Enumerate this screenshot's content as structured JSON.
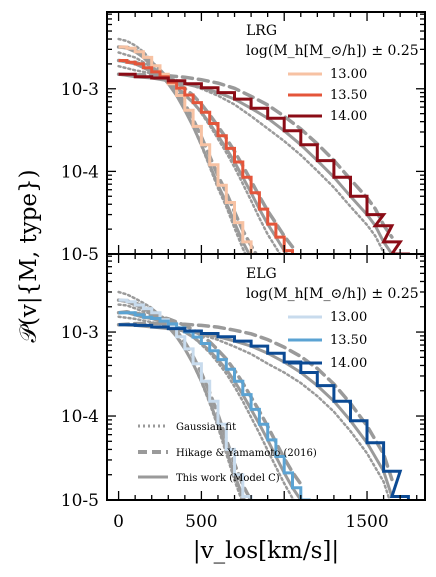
{
  "chart_data": [
    {
      "type": "line",
      "panel": "top",
      "log_y": true,
      "ylim": [
        1e-05,
        0.0085
      ],
      "xlim": [
        -70,
        1850
      ],
      "legend_title_name": "LRG",
      "legend_title_expr": "log(M_h[M_⊙/h]) ± 0.25",
      "yticks": [
        {
          "value": 0.001,
          "label": "10-3"
        },
        {
          "value": 0.0001,
          "label": "10-4"
        },
        {
          "value": 1e-05,
          "label": "10-5"
        }
      ],
      "series": [
        {
          "name": "13.00",
          "color": "#f7c2a3",
          "x": [
            0,
            50,
            100,
            150,
            200,
            250,
            300,
            350,
            400,
            450,
            500,
            550,
            600,
            650,
            700,
            750,
            800,
            850
          ],
          "y": [
            0.0032,
            0.0031,
            0.0028,
            0.0024,
            0.0019,
            0.0015,
            0.00115,
            0.00083,
            0.00055,
            0.00035,
            0.00021,
            0.00012,
            6.8e-05,
            4.2e-05,
            2.4e-05,
            1.4e-05,
            9e-06,
            6e-06
          ]
        },
        {
          "name": "13.50",
          "color": "#e4553a",
          "x": [
            0,
            50,
            100,
            150,
            200,
            250,
            300,
            350,
            400,
            450,
            500,
            550,
            600,
            650,
            700,
            750,
            800,
            850,
            900,
            950,
            1000,
            1050
          ],
          "y": [
            0.0022,
            0.0021,
            0.002,
            0.0018,
            0.0016,
            0.0014,
            0.0012,
            0.00102,
            0.00084,
            0.00068,
            0.00052,
            0.00038,
            0.00027,
            0.00019,
            0.00013,
            8.5e-05,
            5.5e-05,
            3.5e-05,
            2.3e-05,
            1.6e-05,
            1.1e-05,
            8e-06
          ]
        },
        {
          "name": "14.00",
          "color": "#8b0c16",
          "x": [
            0,
            100,
            200,
            300,
            400,
            500,
            600,
            700,
            800,
            900,
            1000,
            1100,
            1200,
            1300,
            1400,
            1500,
            1550,
            1600,
            1650
          ],
          "y": [
            0.0015,
            0.0014,
            0.00135,
            0.00125,
            0.00115,
            0.00103,
            0.0009,
            0.00075,
            0.00058,
            0.00044,
            0.00031,
            0.00021,
            0.000135,
            8.5e-05,
            5e-05,
            3e-05,
            2.2e-05,
            1.4e-05,
            1e-05
          ]
        }
      ]
    },
    {
      "type": "line",
      "panel": "bottom",
      "log_y": true,
      "ylim": [
        1e-05,
        0.0085
      ],
      "xlim": [
        -70,
        1850
      ],
      "xlabel": "|v_los[km/s]|",
      "legend_title_name": "ELG",
      "legend_title_expr": "log(M_h[M_⊙/h]) ± 0.25",
      "xticks": [
        {
          "value": 0,
          "label": "0"
        },
        {
          "value": 500,
          "label": "500"
        },
        {
          "value": 1500,
          "label": "1500"
        }
      ],
      "yticks": [
        {
          "value": 0.001,
          "label": "10-3"
        },
        {
          "value": 0.0001,
          "label": "10-4"
        },
        {
          "value": 1e-05,
          "label": "10-5"
        }
      ],
      "series": [
        {
          "name": "13.00",
          "color": "#c8dbed",
          "x": [
            0,
            50,
            100,
            150,
            200,
            250,
            300,
            350,
            400,
            450,
            500,
            550,
            600,
            650,
            700,
            750,
            800
          ],
          "y": [
            0.0024,
            0.0023,
            0.0021,
            0.0019,
            0.0017,
            0.0014,
            0.00115,
            0.00088,
            0.00063,
            0.00042,
            0.00026,
            0.00015,
            8e-05,
            4e-05,
            2e-05,
            1.1e-05,
            7e-06
          ]
        },
        {
          "name": "13.50",
          "color": "#5ba3d3",
          "x": [
            0,
            50,
            100,
            150,
            200,
            250,
            300,
            350,
            400,
            450,
            500,
            550,
            600,
            650,
            700,
            750,
            800,
            850,
            900,
            950,
            1000,
            1050,
            1100
          ],
          "y": [
            0.0017,
            0.0017,
            0.0016,
            0.0015,
            0.00145,
            0.00135,
            0.00125,
            0.00112,
            0.001,
            0.00087,
            0.00073,
            0.0006,
            0.00047,
            0.00036,
            0.00026,
            0.00018,
            0.00012,
            8e-05,
            5.2e-05,
            3.3e-05,
            2.1e-05,
            1.4e-05,
            1e-05
          ]
        },
        {
          "name": "14.00",
          "color": "#0b4a94",
          "x": [
            0,
            100,
            200,
            300,
            400,
            500,
            600,
            700,
            800,
            900,
            1000,
            1100,
            1200,
            1300,
            1400,
            1500,
            1600,
            1650
          ],
          "y": [
            0.00122,
            0.0012,
            0.00115,
            0.0011,
            0.00103,
            0.00096,
            0.00088,
            0.00078,
            0.00068,
            0.00056,
            0.00044,
            0.00033,
            0.00023,
            0.00015,
            8.8e-05,
            4.8e-05,
            2.2e-05,
            1.1e-05
          ]
        }
      ]
    }
  ],
  "shared_ylabel": "𝒫(v|{M, type})",
  "model_legend": [
    {
      "label": "Gaussian fit",
      "style": "dotted"
    },
    {
      "label": "Hikage & Yamamoto (2016)",
      "style": "dashed"
    },
    {
      "label": "This work (Model C)",
      "style": "solid"
    }
  ],
  "model_color": "#9a9a9a"
}
